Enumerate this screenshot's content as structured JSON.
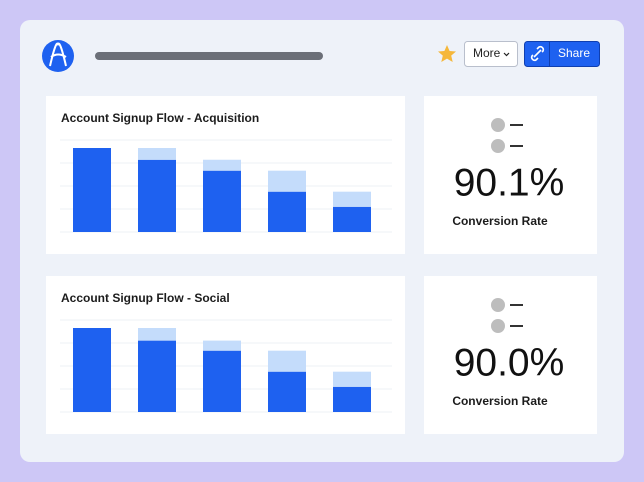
{
  "toolbar": {
    "more": "More",
    "share": "Share"
  },
  "chart_data": [
    {
      "type": "bar",
      "title": "Account Signup Flow - Acquisition",
      "ylim": [
        0,
        100
      ],
      "series": [
        {
          "color": "#1e61f0",
          "values": [
            100,
            86,
            73,
            48,
            30
          ]
        },
        {
          "color": "#c4dcfb",
          "values": [
            0,
            14,
            13,
            25,
            18
          ]
        }
      ]
    },
    {
      "type": "bar",
      "title": "Account Signup Flow - Social",
      "ylim": [
        0,
        100
      ],
      "series": [
        {
          "color": "#1e61f0",
          "values": [
            100,
            85,
            73,
            48,
            30
          ]
        },
        {
          "color": "#c4dcfb",
          "values": [
            0,
            15,
            12,
            25,
            18
          ]
        }
      ]
    }
  ],
  "metrics": [
    {
      "value": "90.1%",
      "label": "Conversion Rate"
    },
    {
      "value": "90.0%",
      "label": "Conversion Rate"
    }
  ]
}
